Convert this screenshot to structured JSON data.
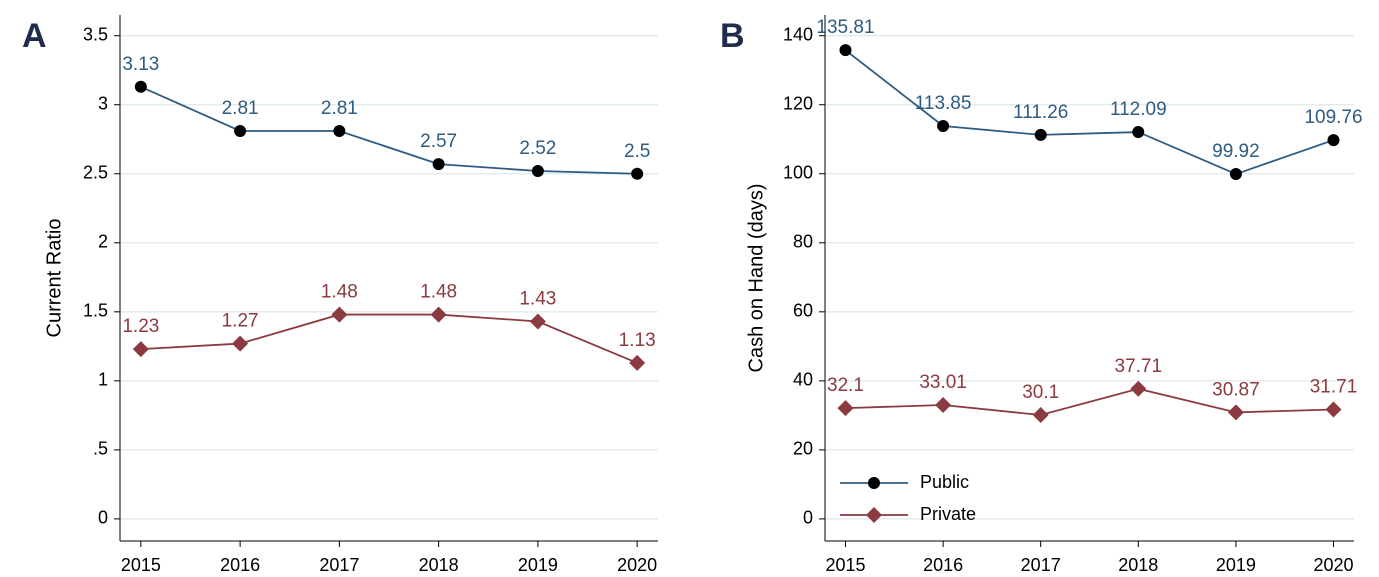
{
  "chart_data": [
    {
      "type": "line",
      "panel": "A",
      "ylabel": "Current Ratio",
      "x": [
        2015,
        2016,
        2017,
        2018,
        2019,
        2020
      ],
      "xlim": [
        2014.79,
        2020.21
      ],
      "xticks": [
        2015,
        2016,
        2017,
        2018,
        2019,
        2020
      ],
      "ylim": [
        -0.16,
        3.65
      ],
      "yticks": [
        0,
        {
          "value": 0.5,
          "label": ".5"
        },
        1,
        1.5,
        2,
        2.5,
        3,
        3.5
      ],
      "grid": true,
      "series": [
        {
          "color": "#2d5b82",
          "marker": "circle",
          "marker_color": "#000000",
          "values": [
            3.13,
            2.81,
            2.81,
            2.57,
            2.52,
            2.5
          ]
        },
        {
          "color": "#8b3a3f",
          "marker": "diamond",
          "marker_color": "#8b3a3f",
          "values": [
            1.23,
            1.27,
            1.48,
            1.48,
            1.43,
            1.13
          ]
        }
      ]
    },
    {
      "type": "line",
      "panel": "B",
      "ylabel": "Cash on Hand (days)",
      "x": [
        2015,
        2016,
        2017,
        2018,
        2019,
        2020
      ],
      "xlim": [
        2014.79,
        2020.21
      ],
      "xticks": [
        2015,
        2016,
        2017,
        2018,
        2019,
        2020
      ],
      "ylim": [
        -6.4,
        146
      ],
      "yticks": [
        0,
        20,
        40,
        60,
        80,
        100,
        120,
        140
      ],
      "grid": true,
      "legend": "lower left",
      "series": [
        {
          "name": "Public",
          "color": "#2d5b82",
          "marker": "circle",
          "marker_color": "#000000",
          "values": [
            135.81,
            113.85,
            111.26,
            112.09,
            99.92,
            109.76
          ]
        },
        {
          "name": "Private",
          "color": "#8b3a3f",
          "marker": "diamond",
          "marker_color": "#8b3a3f",
          "values": [
            32.1,
            33.01,
            30.1,
            37.71,
            30.87,
            31.71
          ]
        }
      ]
    }
  ]
}
